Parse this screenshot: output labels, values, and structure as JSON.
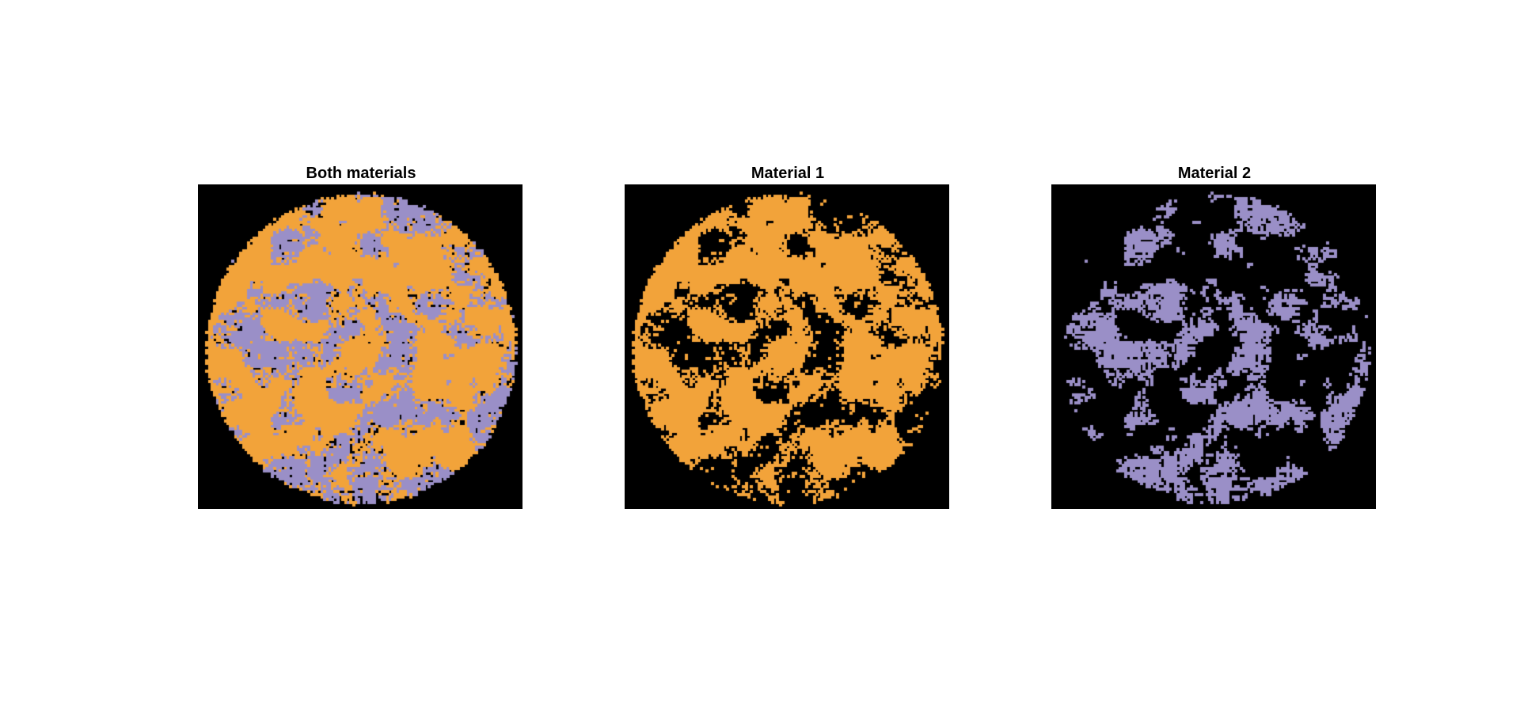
{
  "figure": {
    "colors": {
      "background": "#000000",
      "material_1": "#F2A33A",
      "material_2": "#9A8FC7"
    },
    "panels": [
      {
        "title": "Both materials",
        "shows": [
          "material_1",
          "material_2"
        ]
      },
      {
        "title": "Material 1",
        "shows": [
          "material_1"
        ]
      },
      {
        "title": "Material 2",
        "shows": [
          "material_2"
        ]
      }
    ]
  }
}
